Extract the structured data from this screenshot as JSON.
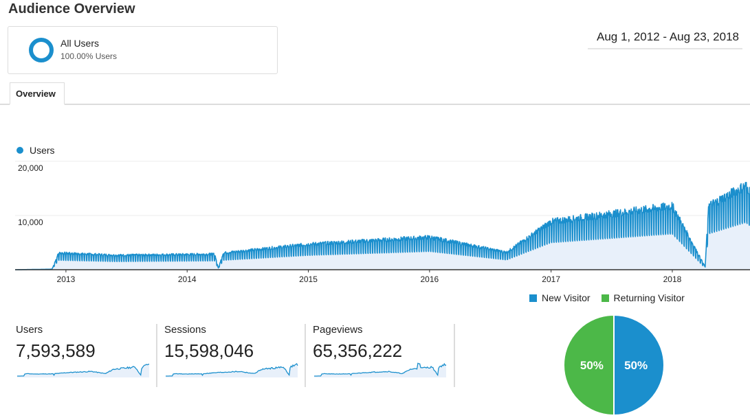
{
  "page": {
    "title": "Audience Overview"
  },
  "segment": {
    "name": "All Users",
    "percent": "100.00% Users"
  },
  "date_range": "Aug 1, 2012 - Aug 23, 2018",
  "tabs": [
    {
      "label": "Overview",
      "active": true
    }
  ],
  "colors": {
    "accent": "#1b8fcd",
    "returning": "#4cb848",
    "area_fill": "#e8f0fa"
  },
  "main_chart": {
    "legend": "Users",
    "y_tick_labels": [
      "20,000",
      "10,000"
    ],
    "x_tick_labels": [
      "2013",
      "2014",
      "2015",
      "2016",
      "2017",
      "2018"
    ]
  },
  "chart_data": [
    {
      "type": "line",
      "series": [
        {
          "name": "Users"
        }
      ],
      "x_range": [
        "2012-08-01",
        "2018-08-23"
      ],
      "x_ticks": [
        "2013",
        "2014",
        "2015",
        "2016",
        "2017",
        "2018"
      ],
      "y_ticks": [
        10000,
        20000
      ],
      "ylim": [
        0,
        20000
      ],
      "fill": "area",
      "trend_points": [
        {
          "x": "2012-08-01",
          "y": 0
        },
        {
          "x": "2012-11-20",
          "y": 100
        },
        {
          "x": "2012-12-10",
          "y": 2900
        },
        {
          "x": "2013-06-01",
          "y": 2500
        },
        {
          "x": "2014-03-25",
          "y": 2700
        },
        {
          "x": "2014-04-05",
          "y": 300
        },
        {
          "x": "2014-04-20",
          "y": 2900
        },
        {
          "x": "2015-01-01",
          "y": 4400
        },
        {
          "x": "2016-01-01",
          "y": 5600
        },
        {
          "x": "2016-08-20",
          "y": 3000
        },
        {
          "x": "2017-01-01",
          "y": 8300
        },
        {
          "x": "2018-01-01",
          "y": 11000
        },
        {
          "x": "2018-04-10",
          "y": 500
        },
        {
          "x": "2018-04-20",
          "y": 11000
        },
        {
          "x": "2018-08-10",
          "y": 14500
        },
        {
          "x": "2018-08-23",
          "y": 13500
        }
      ]
    },
    {
      "type": "pie",
      "labels": [
        "New Visitor",
        "Returning Visitor"
      ],
      "values": [
        50,
        50
      ],
      "colors": [
        "#1b8fcd",
        "#4cb848"
      ]
    }
  ],
  "metrics": [
    {
      "label": "Users",
      "value": "7,593,589"
    },
    {
      "label": "Sessions",
      "value": "15,598,046"
    },
    {
      "label": "Pageviews",
      "value": "65,356,222"
    }
  ],
  "pie": {
    "legend": [
      {
        "label": "New Visitor",
        "color": "#1b8fcd"
      },
      {
        "label": "Returning Visitor",
        "color": "#4cb848"
      }
    ],
    "labels": [
      "50%",
      "50%"
    ]
  }
}
